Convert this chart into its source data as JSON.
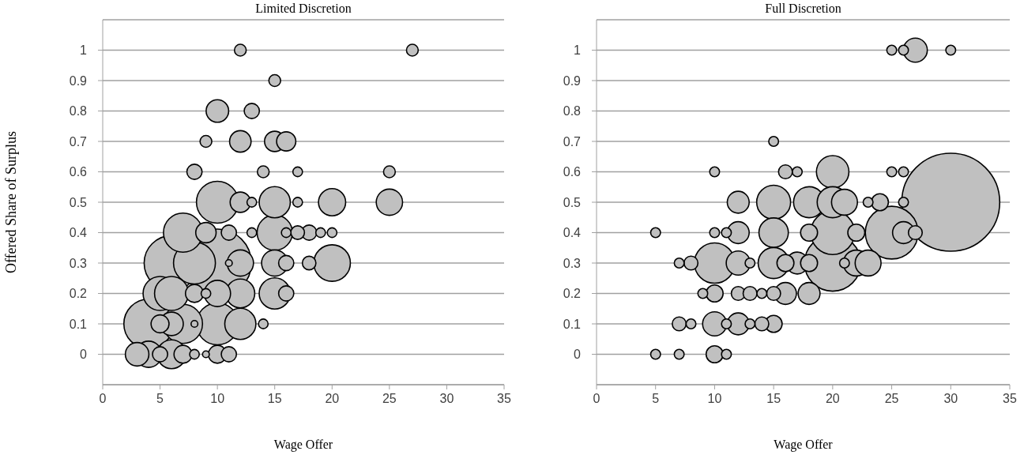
{
  "chart_data": [
    {
      "type": "bubble",
      "title": "Limited Discretion",
      "xlabel": "Wage Offer",
      "ylabel": "Offered Share of Surplus",
      "color": "#c0c0c0",
      "grid": "y",
      "xlim": [
        0,
        35
      ],
      "xticks": [
        0,
        5,
        10,
        15,
        20,
        25,
        30,
        35
      ],
      "ylim": [
        -0.1,
        1.1
      ],
      "yticks": [
        0,
        0.1,
        0.2,
        0.3,
        0.4,
        0.5,
        0.6,
        0.7,
        0.8,
        0.9,
        1
      ],
      "x": [
        12,
        27,
        15,
        10,
        13,
        9,
        12,
        15,
        16,
        8,
        14,
        17,
        25,
        10,
        12,
        13,
        15,
        17,
        20,
        25,
        7,
        9,
        11,
        13,
        15,
        16,
        17,
        18,
        19,
        20,
        6,
        8,
        10,
        11,
        12,
        15,
        16,
        18,
        20,
        5,
        6,
        8,
        9,
        10,
        12,
        15,
        16,
        4,
        5,
        6,
        7,
        8,
        10,
        12,
        14,
        3,
        4,
        5,
        6,
        7,
        8,
        9,
        10,
        11
      ],
      "values": [
        1,
        1,
        0.9,
        0.8,
        0.8,
        0.7,
        0.7,
        0.7,
        0.7,
        0.6,
        0.6,
        0.6,
        0.6,
        0.5,
        0.5,
        0.5,
        0.5,
        0.5,
        0.5,
        0.5,
        0.4,
        0.4,
        0.4,
        0.4,
        0.4,
        0.4,
        0.4,
        0.4,
        0.4,
        0.4,
        0.3,
        0.3,
        0.3,
        0.3,
        0.3,
        0.3,
        0.3,
        0.3,
        0.3,
        0.2,
        0.2,
        0.2,
        0.2,
        0.2,
        0.2,
        0.2,
        0.2,
        0.1,
        0.1,
        0.1,
        0.1,
        0.1,
        0.1,
        0.1,
        0.1,
        0,
        0,
        0,
        0,
        0,
        0,
        0,
        0,
        0
      ],
      "sizes": [
        0.03,
        0.03,
        0.03,
        0.11,
        0.05,
        0.03,
        0.1,
        0.09,
        0.08,
        0.05,
        0.03,
        0.02,
        0.03,
        0.38,
        0.09,
        0.02,
        0.21,
        0.02,
        0.16,
        0.15,
        0.33,
        0.09,
        0.05,
        0.02,
        0.27,
        0.02,
        0.04,
        0.05,
        0.02,
        0.02,
        0.65,
        0.38,
        1,
        0.01,
        0.15,
        0.15,
        0.05,
        0.04,
        0.29,
        0.25,
        0.25,
        0.07,
        0.02,
        0.15,
        0.18,
        0.21,
        0.05,
        0.53,
        0.07,
        0.12,
        0.33,
        0.01,
        0.38,
        0.21,
        0.02,
        0.12,
        0.15,
        0.05,
        0.18,
        0.07,
        0.02,
        0.01,
        0.07,
        0.05
      ]
    },
    {
      "type": "bubble",
      "title": "Full Discretion",
      "xlabel": "Wage Offer",
      "color": "#c0c0c0",
      "grid": "y",
      "xlim": [
        0,
        35
      ],
      "xticks": [
        0,
        5,
        10,
        15,
        20,
        25,
        30,
        35
      ],
      "ylim": [
        -0.1,
        1.1
      ],
      "yticks": [
        0,
        0.1,
        0.2,
        0.3,
        0.4,
        0.5,
        0.6,
        0.7,
        0.8,
        0.9,
        1
      ],
      "x": [
        25,
        26,
        27,
        30,
        15,
        10,
        16,
        17,
        20,
        25,
        26,
        12,
        15,
        18,
        20,
        21,
        23,
        24,
        26,
        30,
        5,
        10,
        11,
        12,
        15,
        18,
        20,
        22,
        25,
        26,
        27,
        7,
        8,
        10,
        12,
        13,
        15,
        16,
        17,
        18,
        20,
        21,
        22,
        23,
        9,
        10,
        12,
        13,
        14,
        15,
        16,
        18,
        7,
        8,
        10,
        11,
        12,
        13,
        14,
        15,
        5,
        7,
        10,
        11
      ],
      "values": [
        1,
        1,
        1,
        1,
        0.7,
        0.6,
        0.6,
        0.6,
        0.6,
        0.6,
        0.6,
        0.5,
        0.5,
        0.5,
        0.5,
        0.5,
        0.5,
        0.5,
        0.5,
        0.5,
        0.4,
        0.4,
        0.4,
        0.4,
        0.4,
        0.4,
        0.4,
        0.4,
        0.4,
        0.4,
        0.4,
        0.3,
        0.3,
        0.3,
        0.3,
        0.3,
        0.3,
        0.3,
        0.3,
        0.3,
        0.3,
        0.3,
        0.3,
        0.3,
        0.2,
        0.2,
        0.2,
        0.2,
        0.2,
        0.2,
        0.2,
        0.2,
        0.1,
        0.1,
        0.1,
        0.1,
        0.1,
        0.1,
        0.1,
        0.1,
        0,
        0,
        0,
        0
      ],
      "sizes": [
        0.01,
        0.01,
        0.06,
        0.01,
        0.01,
        0.01,
        0.02,
        0.01,
        0.11,
        0.01,
        0.01,
        0.05,
        0.12,
        0.1,
        0.1,
        0.07,
        0.01,
        0.03,
        0.01,
        1,
        0.01,
        0.01,
        0.01,
        0.05,
        0.09,
        0.03,
        0.2,
        0.03,
        0.29,
        0.05,
        0.02,
        0.01,
        0.02,
        0.17,
        0.06,
        0.01,
        0.1,
        0.03,
        0.05,
        0.03,
        0.33,
        0.01,
        0.07,
        0.07,
        0.01,
        0.03,
        0.02,
        0.02,
        0.01,
        0.02,
        0.05,
        0.05,
        0.02,
        0.01,
        0.06,
        0.01,
        0.05,
        0.01,
        0.02,
        0.03,
        0.01,
        0.01,
        0.03,
        0.01
      ]
    }
  ]
}
